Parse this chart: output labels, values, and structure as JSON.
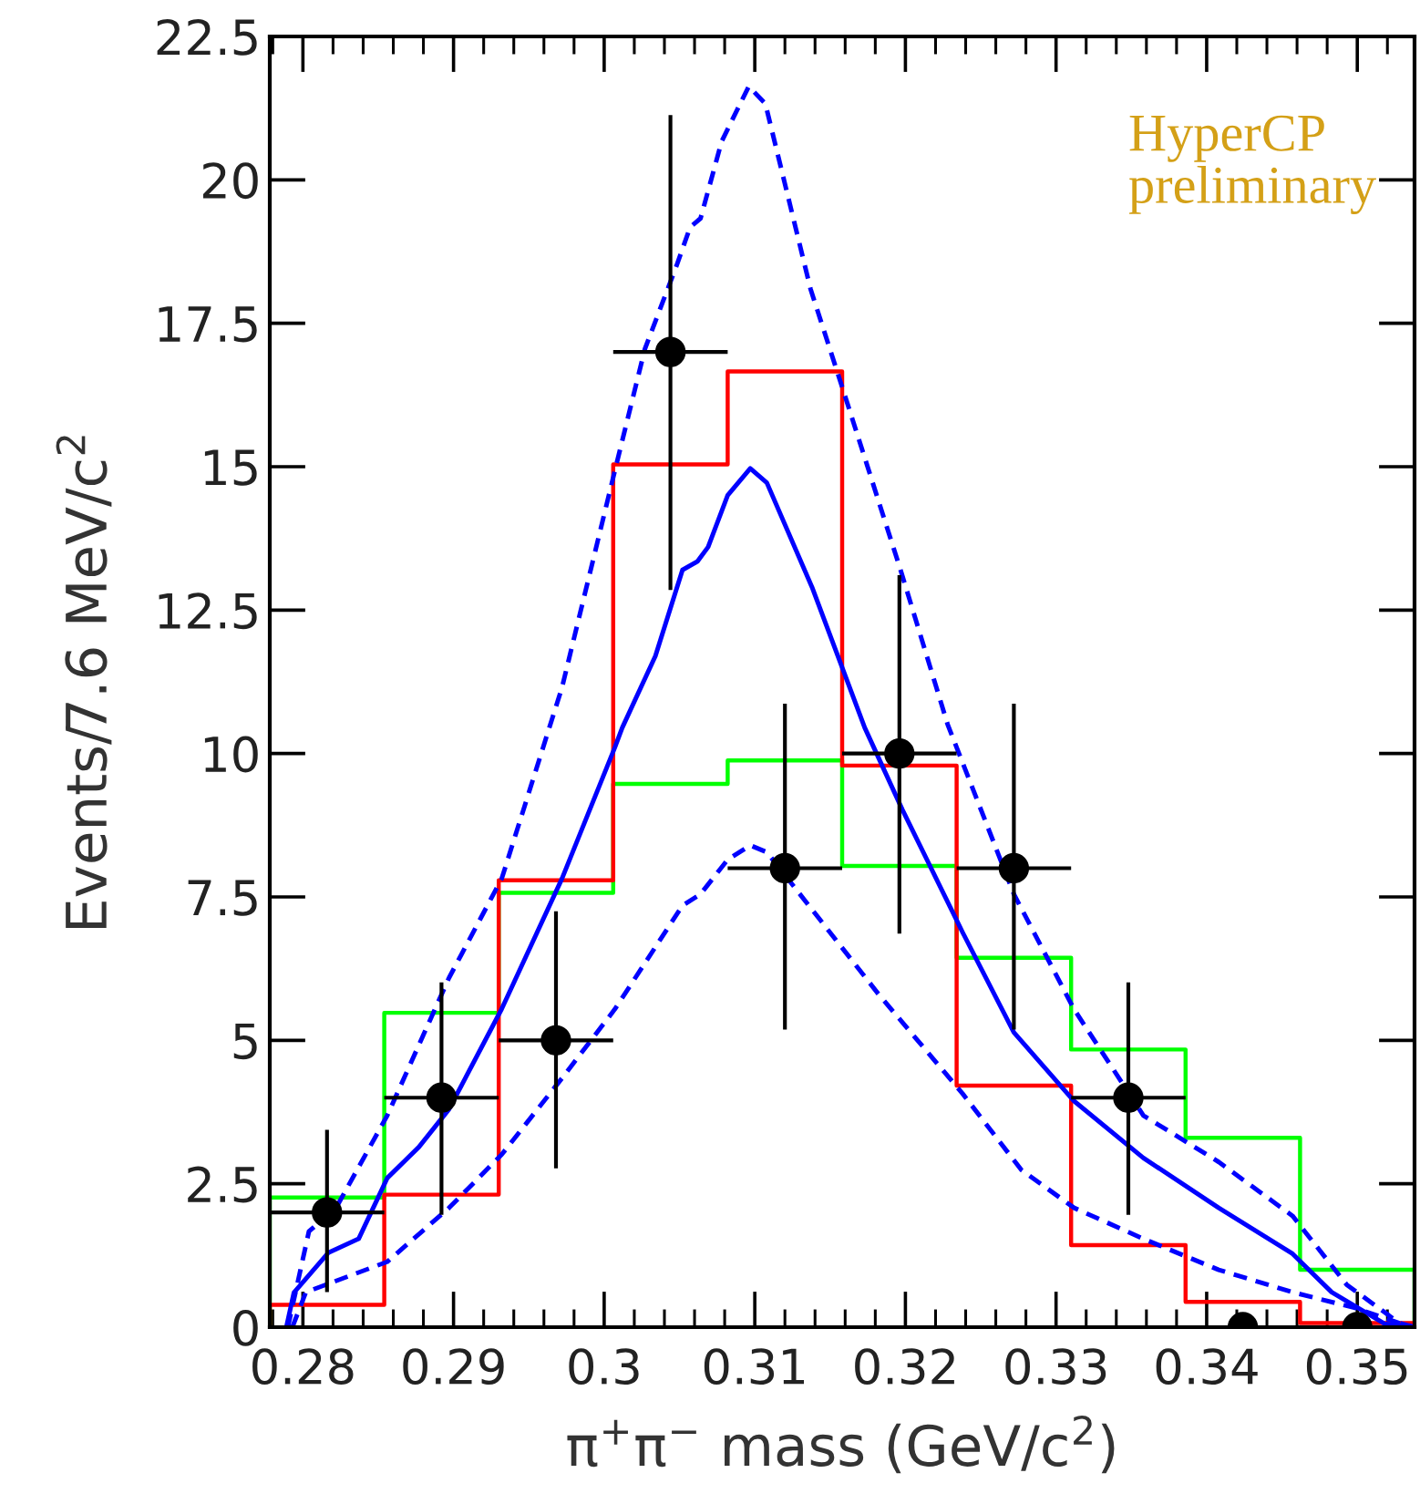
{
  "chart_data": {
    "type": "histogram",
    "xlabel": "π$^{+}$π$^{−}$ mass (GeV/c$^{2}$)",
    "ylabel": "Events/7.6 MeV/c$^{2}$",
    "annotations": [
      "HyperCP\npreliminary"
    ],
    "bins": [
      0.2778,
      0.2854,
      0.293,
      0.3006,
      0.3082,
      0.3158,
      0.3234,
      0.331,
      0.3386,
      0.3462,
      0.3538
    ],
    "xlim": [
      0.2778,
      0.3538
    ],
    "ylim": [
      0,
      22.5
    ],
    "xticks": [
      0.28,
      0.29,
      {
        "value": 0.3,
        "label": "0.3"
      },
      0.31,
      0.32,
      0.33,
      0.34,
      0.35
    ],
    "yticks": [
      0,
      2.5,
      5,
      7.5,
      10,
      12.5,
      15,
      17.5,
      20,
      22.5
    ],
    "grid": false,
    "legend": false,
    "series": [
      {
        "color": "#00ff00",
        "values": [
          2.26,
          5.48,
          7.57,
          9.47,
          9.88,
          8.04,
          6.44,
          4.84,
          3.3,
          1.0
        ]
      },
      {
        "color": "#ff0000",
        "values": [
          0.39,
          2.31,
          7.79,
          15.04,
          16.66,
          9.79,
          4.21,
          1.43,
          0.44,
          0.07
        ]
      },
      {
        "type": "line",
        "color": "#0000ff",
        "line_style": "dashed",
        "x": [
          0.279,
          0.2804,
          0.2822,
          0.2856,
          0.2897,
          0.2932,
          0.2972,
          0.3007,
          0.3027,
          0.3048,
          0.3057,
          0.3064,
          0.3078,
          0.3096,
          0.3107,
          0.3137,
          0.3162,
          0.3197,
          0.3228,
          0.3272,
          0.3312,
          0.3358,
          0.3408,
          0.3457,
          0.3493,
          0.3528,
          0.3538
        ],
        "values": [
          0,
          1.67,
          2.08,
          3.69,
          6.09,
          7.82,
          11.15,
          14.92,
          17.05,
          18.5,
          19.17,
          19.33,
          20.67,
          21.63,
          21.33,
          18.1,
          16.06,
          13.18,
          10.51,
          7.55,
          5.54,
          3.69,
          2.88,
          1.94,
          0.74,
          0.07,
          0
        ]
      },
      {
        "type": "line",
        "color": "#0000ff",
        "line_style": "solid",
        "x": [
          0.2789,
          0.2794,
          0.2817,
          0.2837,
          0.2856,
          0.2877,
          0.2897,
          0.2932,
          0.2972,
          0.3007,
          0.3012,
          0.3034,
          0.3052,
          0.3062,
          0.3069,
          0.3082,
          0.3097,
          0.3108,
          0.3138,
          0.3173,
          0.3198,
          0.3238,
          0.3272,
          0.3312,
          0.3358,
          0.3408,
          0.3457,
          0.3483,
          0.3518,
          0.3538
        ],
        "values": [
          0,
          0.6,
          1.3,
          1.54,
          2.6,
          3.14,
          3.8,
          5.55,
          7.82,
          10.1,
          10.45,
          11.7,
          13.2,
          13.35,
          13.6,
          14.5,
          14.97,
          14.72,
          12.9,
          10.45,
          9.02,
          6.88,
          5.14,
          3.94,
          2.95,
          2.08,
          1.28,
          0.61,
          0.06,
          0
        ]
      },
      {
        "type": "line",
        "color": "#0000ff",
        "line_style": "dashed",
        "x": [
          0.2793,
          0.2802,
          0.2856,
          0.2897,
          0.2932,
          0.2972,
          0.3007,
          0.3052,
          0.3064,
          0.3082,
          0.3097,
          0.3108,
          0.3138,
          0.3182,
          0.3238,
          0.3277,
          0.3312,
          0.3358,
          0.3408,
          0.3457,
          0.3498,
          0.3528,
          0.3538
        ],
        "values": [
          0,
          0.61,
          1.14,
          2.08,
          3.01,
          4.34,
          5.54,
          7.35,
          7.55,
          8.15,
          8.4,
          8.28,
          7.28,
          5.81,
          4.07,
          2.74,
          2.08,
          1.54,
          1.0,
          0.61,
          0.34,
          0.07,
          0
        ]
      },
      {
        "type": "scatter",
        "color": "#000000",
        "marker": "circle",
        "x": [
          0.2816,
          0.2892,
          0.2968,
          0.3044,
          0.312,
          0.3196,
          0.3272,
          0.3348,
          0.3424,
          0.35
        ],
        "values": [
          2,
          4,
          5,
          17,
          8,
          10,
          8,
          4,
          0,
          0
        ],
        "errors": [
          [
            0.61,
            3.44
          ],
          [
            1.96,
            6.01
          ],
          [
            2.77,
            7.25
          ],
          [
            12.85,
            21.13
          ],
          [
            5.19,
            10.87
          ],
          [
            6.86,
            13.11
          ],
          [
            5.19,
            10.87
          ],
          [
            1.96,
            6.01
          ],
          null,
          null
        ],
        "xerrors": [
          0.0038,
          0.0038,
          0.0038,
          0.0038,
          0.0038,
          0.0038,
          0.0038,
          0.0038,
          null,
          null
        ]
      }
    ]
  }
}
